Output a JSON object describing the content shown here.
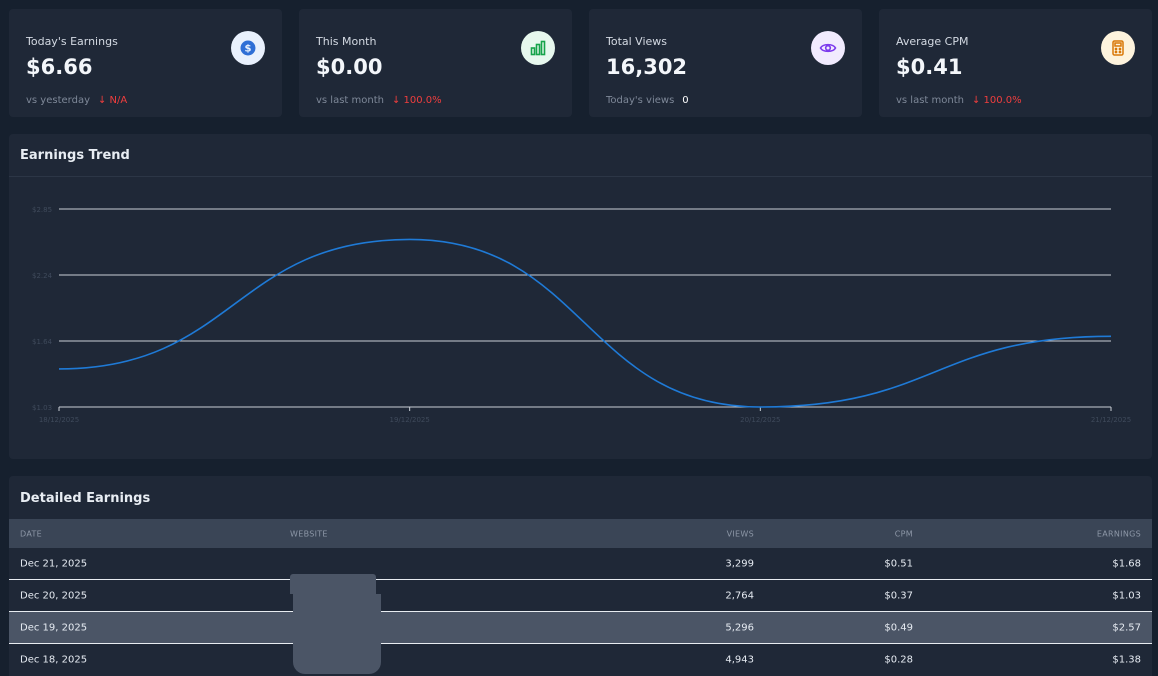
{
  "stats": [
    {
      "label": "Today's Earnings",
      "value": "$6.66",
      "sub_label": "vs yesterday",
      "sub_value": "↓ N/A",
      "icon": "dollar-icon",
      "accent": "#2f6fd6"
    },
    {
      "label": "This Month",
      "value": "$0.00",
      "sub_label": "vs last month",
      "sub_value": "↓ 100.0%",
      "icon": "bar-chart-icon",
      "accent": "#16a34a"
    },
    {
      "label": "Total Views",
      "value": "16,302",
      "sub_label": "Today's views",
      "sub_value": "0",
      "icon": "eye-icon",
      "accent": "#7c3aed"
    },
    {
      "label": "Average CPM",
      "value": "$0.41",
      "sub_label": "vs last month",
      "sub_value": "↓ 100.0%",
      "icon": "calculator-icon",
      "accent": "#d97706"
    }
  ],
  "chart": {
    "title": "Earnings Trend"
  },
  "chart_data": {
    "type": "line",
    "title": "Earnings Trend",
    "x": [
      "18/12/2025",
      "19/12/2025",
      "20/12/2025",
      "21/12/2025"
    ],
    "y_ticks": [
      "$1.03",
      "$1.64",
      "$2.24",
      "$2.85"
    ],
    "ylim": [
      1.03,
      2.85
    ],
    "series": [
      {
        "values": [
          1.38,
          2.57,
          1.03,
          1.68
        ]
      }
    ],
    "grid": true,
    "line_color": "#1f7ad6"
  },
  "table": {
    "title": "Detailed Earnings",
    "headers": {
      "date": "DATE",
      "website": "WEBSITE",
      "views": "VIEWS",
      "cpm": "CPM",
      "earnings": "EARNINGS"
    },
    "rows": [
      {
        "date": "Dec 21, 2025",
        "views": "3,299",
        "cpm": "$0.51",
        "earnings": "$1.68"
      },
      {
        "date": "Dec 20, 2025",
        "views": "2,764",
        "cpm": "$0.37",
        "earnings": "$1.03"
      },
      {
        "date": "Dec 19, 2025",
        "views": "5,296",
        "cpm": "$0.49",
        "earnings": "$2.57"
      },
      {
        "date": "Dec 18, 2025",
        "views": "4,943",
        "cpm": "$0.28",
        "earnings": "$1.38"
      }
    ]
  }
}
